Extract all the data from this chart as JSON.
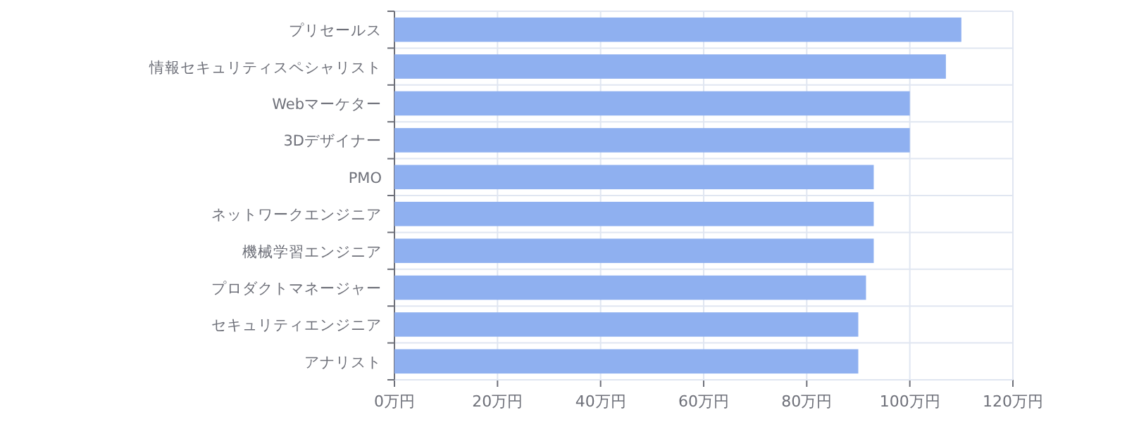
{
  "chart_data": {
    "type": "bar",
    "orientation": "horizontal",
    "categories": [
      "プリセールス",
      "情報セキュリティスペシャリスト",
      "Webマーケター",
      "3Dデザイナー",
      "PMO",
      "ネットワークエンジニア",
      "機械学習エンジニア",
      "プロダクトマネージャー",
      "セキュリティエンジニア",
      "アナリスト"
    ],
    "values": [
      110,
      107,
      100,
      100,
      93,
      93,
      93,
      91.5,
      90,
      90
    ],
    "color": "#8fb0f0",
    "xlim": [
      0,
      120
    ],
    "xticks": [
      {
        "value": 0,
        "label": "0万円"
      },
      {
        "value": 20,
        "label": "20万円"
      },
      {
        "value": 40,
        "label": "40万円"
      },
      {
        "value": 60,
        "label": "60万円"
      },
      {
        "value": 80,
        "label": "80万円"
      },
      {
        "value": 100,
        "label": "100万円"
      },
      {
        "value": 120,
        "label": "120万円"
      }
    ],
    "grid": true
  }
}
